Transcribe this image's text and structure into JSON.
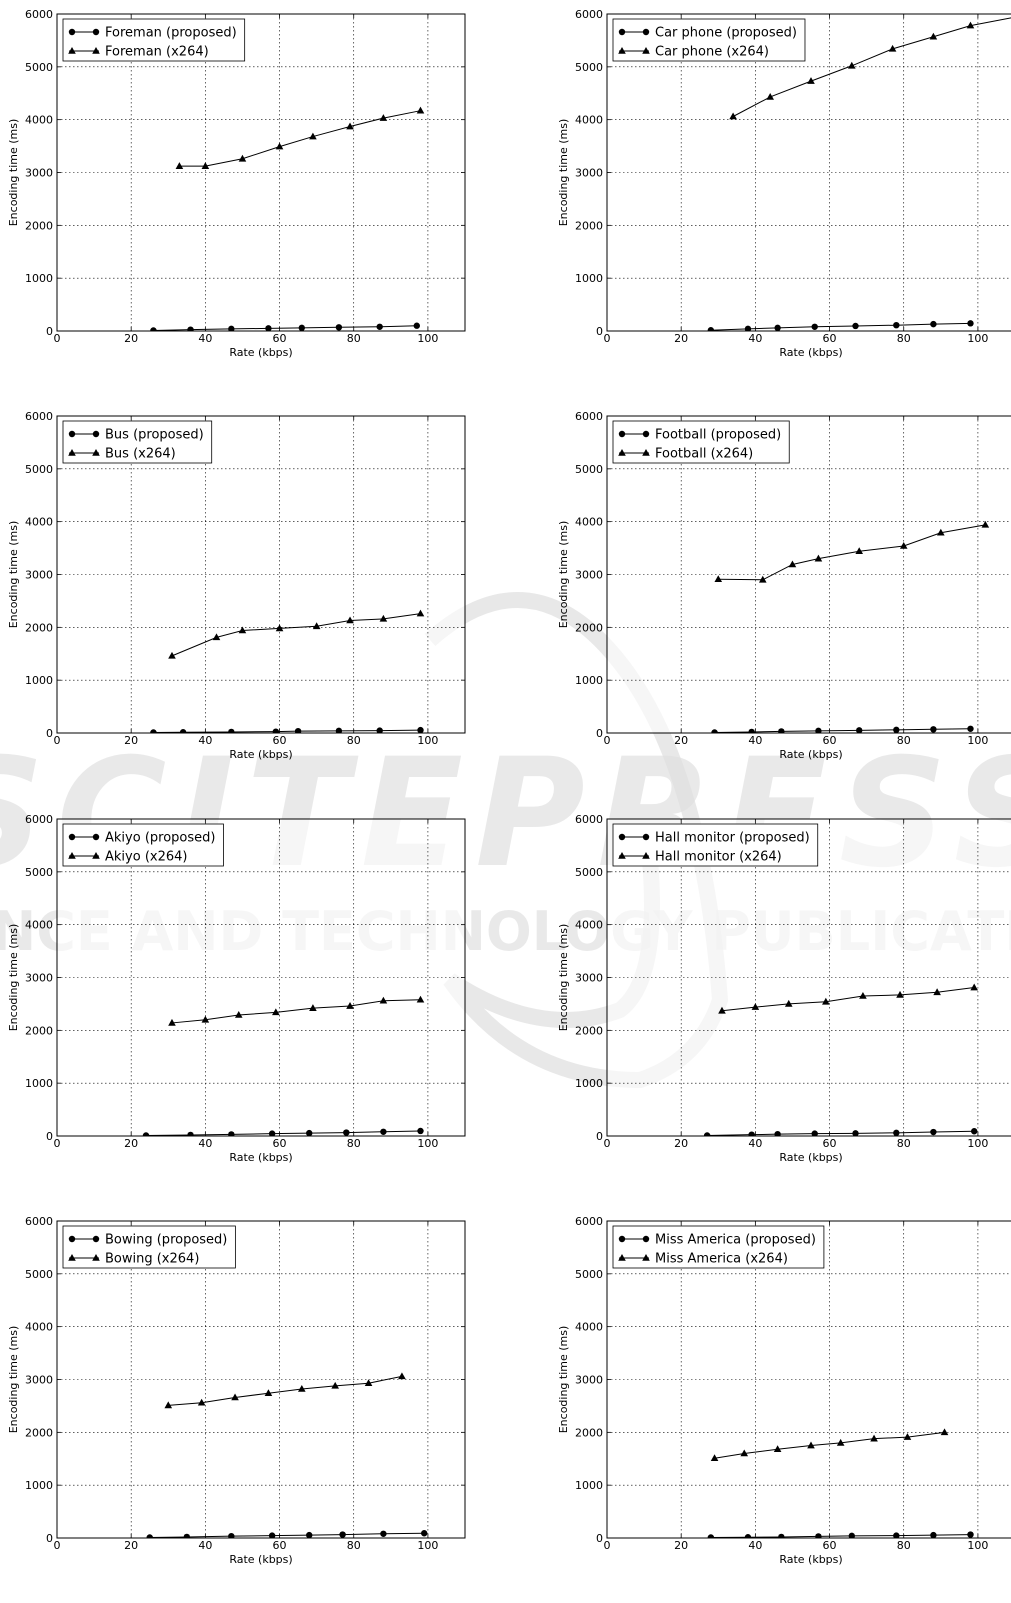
{
  "chart_data": [
    {
      "type": "line",
      "title": "",
      "xlabel": "Rate (kbps)",
      "ylabel": "Encoding time (ms)",
      "xlim": [
        0,
        110
      ],
      "ylim": [
        0,
        6000
      ],
      "xticks": [
        0,
        20,
        40,
        60,
        80,
        100
      ],
      "yticks": [
        0,
        1000,
        2000,
        3000,
        4000,
        5000,
        6000
      ],
      "grid": true,
      "legend_position": "top-left",
      "series": [
        {
          "name": "Foreman (proposed)",
          "marker": "circle",
          "x": [
            26,
            36,
            47,
            57,
            66,
            76,
            87,
            97
          ],
          "y": [
            10,
            25,
            40,
            50,
            60,
            70,
            80,
            100
          ]
        },
        {
          "name": "Foreman (x264)",
          "marker": "triangle",
          "x": [
            33,
            40,
            50,
            60,
            69,
            79,
            88,
            98
          ],
          "y": [
            3120,
            3120,
            3260,
            3490,
            3680,
            3870,
            4030,
            4170
          ]
        }
      ]
    },
    {
      "type": "line",
      "title": "",
      "xlabel": "Rate (kbps)",
      "ylabel": "Encoding time (ms)",
      "xlim": [
        0,
        110
      ],
      "ylim": [
        0,
        6000
      ],
      "xticks": [
        0,
        20,
        40,
        60,
        80,
        100
      ],
      "yticks": [
        0,
        1000,
        2000,
        3000,
        4000,
        5000,
        6000
      ],
      "grid": true,
      "legend_position": "top-left",
      "series": [
        {
          "name": "Car phone (proposed)",
          "marker": "circle",
          "x": [
            28,
            38,
            46,
            56,
            67,
            78,
            88,
            98
          ],
          "y": [
            15,
            40,
            60,
            80,
            95,
            110,
            130,
            145
          ]
        },
        {
          "name": "Car phone (x264)",
          "marker": "triangle",
          "x": [
            34,
            44,
            55,
            66,
            77,
            88,
            98,
            110
          ],
          "y": [
            4060,
            4430,
            4730,
            5020,
            5340,
            5570,
            5780,
            5940
          ]
        }
      ]
    },
    {
      "type": "line",
      "title": "",
      "xlabel": "Rate (kbps)",
      "ylabel": "Encoding time (ms)",
      "xlim": [
        0,
        110
      ],
      "ylim": [
        0,
        6000
      ],
      "xticks": [
        0,
        20,
        40,
        60,
        80,
        100
      ],
      "yticks": [
        0,
        1000,
        2000,
        3000,
        4000,
        5000,
        6000
      ],
      "grid": true,
      "legend_position": "top-left",
      "series": [
        {
          "name": "Bus (proposed)",
          "marker": "circle",
          "x": [
            26,
            34,
            47,
            59,
            65,
            76,
            87,
            98
          ],
          "y": [
            10,
            15,
            20,
            25,
            35,
            40,
            45,
            55
          ]
        },
        {
          "name": "Bus (x264)",
          "marker": "triangle",
          "x": [
            31,
            43,
            50,
            60,
            70,
            79,
            88,
            98
          ],
          "y": [
            1460,
            1810,
            1940,
            1980,
            2020,
            2130,
            2160,
            2260
          ]
        }
      ]
    },
    {
      "type": "line",
      "title": "",
      "xlabel": "Rate (kbps)",
      "ylabel": "Encoding time (ms)",
      "xlim": [
        0,
        110
      ],
      "ylim": [
        0,
        6000
      ],
      "xticks": [
        0,
        20,
        40,
        60,
        80,
        100
      ],
      "yticks": [
        0,
        1000,
        2000,
        3000,
        4000,
        5000,
        6000
      ],
      "grid": true,
      "legend_position": "top-left",
      "series": [
        {
          "name": "Football (proposed)",
          "marker": "circle",
          "x": [
            29,
            39,
            47,
            57,
            68,
            78,
            88,
            98
          ],
          "y": [
            10,
            20,
            30,
            40,
            50,
            60,
            70,
            80
          ]
        },
        {
          "name": "Football (x264)",
          "marker": "triangle",
          "x": [
            30,
            42,
            50,
            57,
            68,
            80,
            90,
            102
          ],
          "y": [
            2910,
            2900,
            3190,
            3300,
            3440,
            3540,
            3790,
            3940
          ]
        }
      ]
    },
    {
      "type": "line",
      "title": "",
      "xlabel": "Rate (kbps)",
      "ylabel": "Encoding time (ms)",
      "xlim": [
        0,
        110
      ],
      "ylim": [
        0,
        6000
      ],
      "xticks": [
        0,
        20,
        40,
        60,
        80,
        100
      ],
      "yticks": [
        0,
        1000,
        2000,
        3000,
        4000,
        5000,
        6000
      ],
      "grid": true,
      "legend_position": "top-left",
      "series": [
        {
          "name": "Akiyo (proposed)",
          "marker": "circle",
          "x": [
            24,
            36,
            47,
            58,
            68,
            78,
            88,
            98
          ],
          "y": [
            10,
            20,
            30,
            45,
            55,
            65,
            80,
            95
          ]
        },
        {
          "name": "Akiyo (x264)",
          "marker": "triangle",
          "x": [
            31,
            40,
            49,
            59,
            69,
            79,
            88,
            98
          ],
          "y": [
            2140,
            2200,
            2290,
            2340,
            2420,
            2460,
            2560,
            2580
          ]
        }
      ]
    },
    {
      "type": "line",
      "title": "",
      "xlabel": "Rate (kbps)",
      "ylabel": "Encoding time (ms)",
      "xlim": [
        0,
        110
      ],
      "ylim": [
        0,
        6000
      ],
      "xticks": [
        0,
        20,
        40,
        60,
        80,
        100
      ],
      "yticks": [
        0,
        1000,
        2000,
        3000,
        4000,
        5000,
        6000
      ],
      "grid": true,
      "legend_position": "top-left",
      "series": [
        {
          "name": "Hall monitor (proposed)",
          "marker": "circle",
          "x": [
            27,
            39,
            46,
            56,
            67,
            78,
            88,
            99
          ],
          "y": [
            10,
            25,
            35,
            45,
            50,
            60,
            75,
            90
          ]
        },
        {
          "name": "Hall monitor (x264)",
          "marker": "triangle",
          "x": [
            31,
            40,
            49,
            59,
            69,
            79,
            89,
            99
          ],
          "y": [
            2370,
            2440,
            2500,
            2540,
            2650,
            2670,
            2720,
            2810
          ]
        }
      ]
    },
    {
      "type": "line",
      "title": "",
      "xlabel": "Rate (kbps)",
      "ylabel": "Encoding time (ms)",
      "xlim": [
        0,
        110
      ],
      "ylim": [
        0,
        6000
      ],
      "xticks": [
        0,
        20,
        40,
        60,
        80,
        100
      ],
      "yticks": [
        0,
        1000,
        2000,
        3000,
        4000,
        5000,
        6000
      ],
      "grid": true,
      "legend_position": "top-left",
      "series": [
        {
          "name": "Bowing (proposed)",
          "marker": "circle",
          "x": [
            25,
            35,
            47,
            58,
            68,
            77,
            88,
            99
          ],
          "y": [
            10,
            20,
            35,
            45,
            55,
            65,
            80,
            90
          ]
        },
        {
          "name": "Bowing (x264)",
          "marker": "triangle",
          "x": [
            30,
            39,
            48,
            57,
            66,
            75,
            84,
            93
          ],
          "y": [
            2510,
            2560,
            2660,
            2740,
            2820,
            2880,
            2930,
            3060
          ]
        }
      ]
    },
    {
      "type": "line",
      "title": "",
      "xlabel": "Rate (kbps)",
      "ylabel": "Encoding time (ms)",
      "xlim": [
        0,
        110
      ],
      "ylim": [
        0,
        6000
      ],
      "xticks": [
        0,
        20,
        40,
        60,
        80,
        100
      ],
      "yticks": [
        0,
        1000,
        2000,
        3000,
        4000,
        5000,
        6000
      ],
      "grid": true,
      "legend_position": "top-left",
      "series": [
        {
          "name": "Miss America (proposed)",
          "marker": "circle",
          "x": [
            28,
            38,
            47,
            57,
            66,
            78,
            88,
            98
          ],
          "y": [
            10,
            15,
            20,
            30,
            40,
            45,
            55,
            65
          ]
        },
        {
          "name": "Miss America (x264)",
          "marker": "triangle",
          "x": [
            29,
            37,
            46,
            55,
            63,
            72,
            81,
            91
          ],
          "y": [
            1510,
            1600,
            1680,
            1750,
            1800,
            1880,
            1910,
            2000
          ]
        }
      ]
    }
  ],
  "watermark": {
    "line1": "SCITEPRESS",
    "line2": "SCIENCE AND TECHNOLOGY PUBLICATIONS",
    "color": "#d8d8d8"
  }
}
